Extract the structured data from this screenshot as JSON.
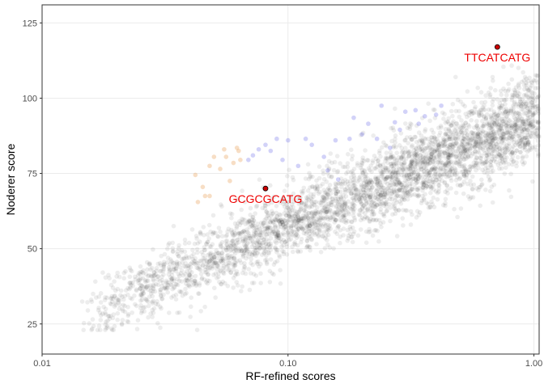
{
  "chart_data": {
    "type": "scatter",
    "title": "",
    "xlabel": "RF-refined scores",
    "ylabel": "Noderer score",
    "x_scale": "log10",
    "xlim": [
      0.01,
      1.05
    ],
    "ylim": [
      15,
      131
    ],
    "x_ticks": [
      0.01,
      0.1,
      1.0
    ],
    "x_tick_labels": [
      "0.01",
      "0.10",
      "1.00"
    ],
    "y_ticks": [
      25,
      50,
      75,
      100,
      125
    ],
    "y_tick_labels": [
      "25",
      "50",
      "75",
      "100",
      "125"
    ],
    "grid": true,
    "legend": "none",
    "colors": {
      "main_points": "#000000",
      "orange_points": "#e8a05a",
      "blue_points": "#3333dd",
      "highlight_fill": "#cc0000",
      "highlight_text": "#ee0000",
      "grid": "#ebebeb",
      "panel_border": "#333333"
    },
    "orange_points": [
      {
        "x": 0.042,
        "y": 74.5
      },
      {
        "x": 0.043,
        "y": 65.5
      },
      {
        "x": 0.045,
        "y": 70.5
      },
      {
        "x": 0.046,
        "y": 67.5
      },
      {
        "x": 0.048,
        "y": 77.5
      },
      {
        "x": 0.048,
        "y": 67.5
      },
      {
        "x": 0.05,
        "y": 80.5
      },
      {
        "x": 0.053,
        "y": 76.5
      },
      {
        "x": 0.055,
        "y": 83.0
      },
      {
        "x": 0.056,
        "y": 80.5
      },
      {
        "x": 0.058,
        "y": 72.5
      },
      {
        "x": 0.06,
        "y": 78.5
      },
      {
        "x": 0.063,
        "y": 82.5
      },
      {
        "x": 0.064,
        "y": 79.5
      },
      {
        "x": 0.062,
        "y": 83.5
      }
    ],
    "blue_points": [
      {
        "x": 0.069,
        "y": 79.5
      },
      {
        "x": 0.072,
        "y": 81.0
      },
      {
        "x": 0.076,
        "y": 83.0
      },
      {
        "x": 0.081,
        "y": 84.5
      },
      {
        "x": 0.085,
        "y": 82.5
      },
      {
        "x": 0.09,
        "y": 86.5
      },
      {
        "x": 0.1,
        "y": 86.0
      },
      {
        "x": 0.118,
        "y": 86.5
      },
      {
        "x": 0.125,
        "y": 84.5
      },
      {
        "x": 0.14,
        "y": 80.5
      },
      {
        "x": 0.156,
        "y": 86.0
      },
      {
        "x": 0.178,
        "y": 86.5
      },
      {
        "x": 0.185,
        "y": 93.5
      },
      {
        "x": 0.2,
        "y": 88.0
      },
      {
        "x": 0.212,
        "y": 91.5
      },
      {
        "x": 0.23,
        "y": 86.5
      },
      {
        "x": 0.24,
        "y": 97.5
      },
      {
        "x": 0.26,
        "y": 83.5
      },
      {
        "x": 0.272,
        "y": 92.0
      },
      {
        "x": 0.285,
        "y": 89.5
      },
      {
        "x": 0.3,
        "y": 95.5
      },
      {
        "x": 0.33,
        "y": 96.0
      },
      {
        "x": 0.34,
        "y": 91.5
      },
      {
        "x": 0.36,
        "y": 94.0
      },
      {
        "x": 0.4,
        "y": 94.5
      },
      {
        "x": 0.42,
        "y": 97.5
      },
      {
        "x": 0.11,
        "y": 77.5
      },
      {
        "x": 0.145,
        "y": 76.0
      },
      {
        "x": 0.16,
        "y": 73.0
      },
      {
        "x": 0.095,
        "y": 79.5
      }
    ],
    "highlighted_points": [
      {
        "label": "GCGCGCATG",
        "x": 0.081,
        "y": 70.0
      },
      {
        "label": "TTCATCATG",
        "x": 0.71,
        "y": 117.0
      }
    ],
    "main_cloud": {
      "n_points": 3600,
      "trend": "Noderer score increases roughly linearly with log10(RF-refined score), from about 28 at x=0.015 to about 92 at x=0.9",
      "x_range": [
        0.014,
        1.05
      ],
      "y_range": [
        23,
        112
      ],
      "density_peak": {
        "x": 0.9,
        "y": 92
      }
    }
  }
}
